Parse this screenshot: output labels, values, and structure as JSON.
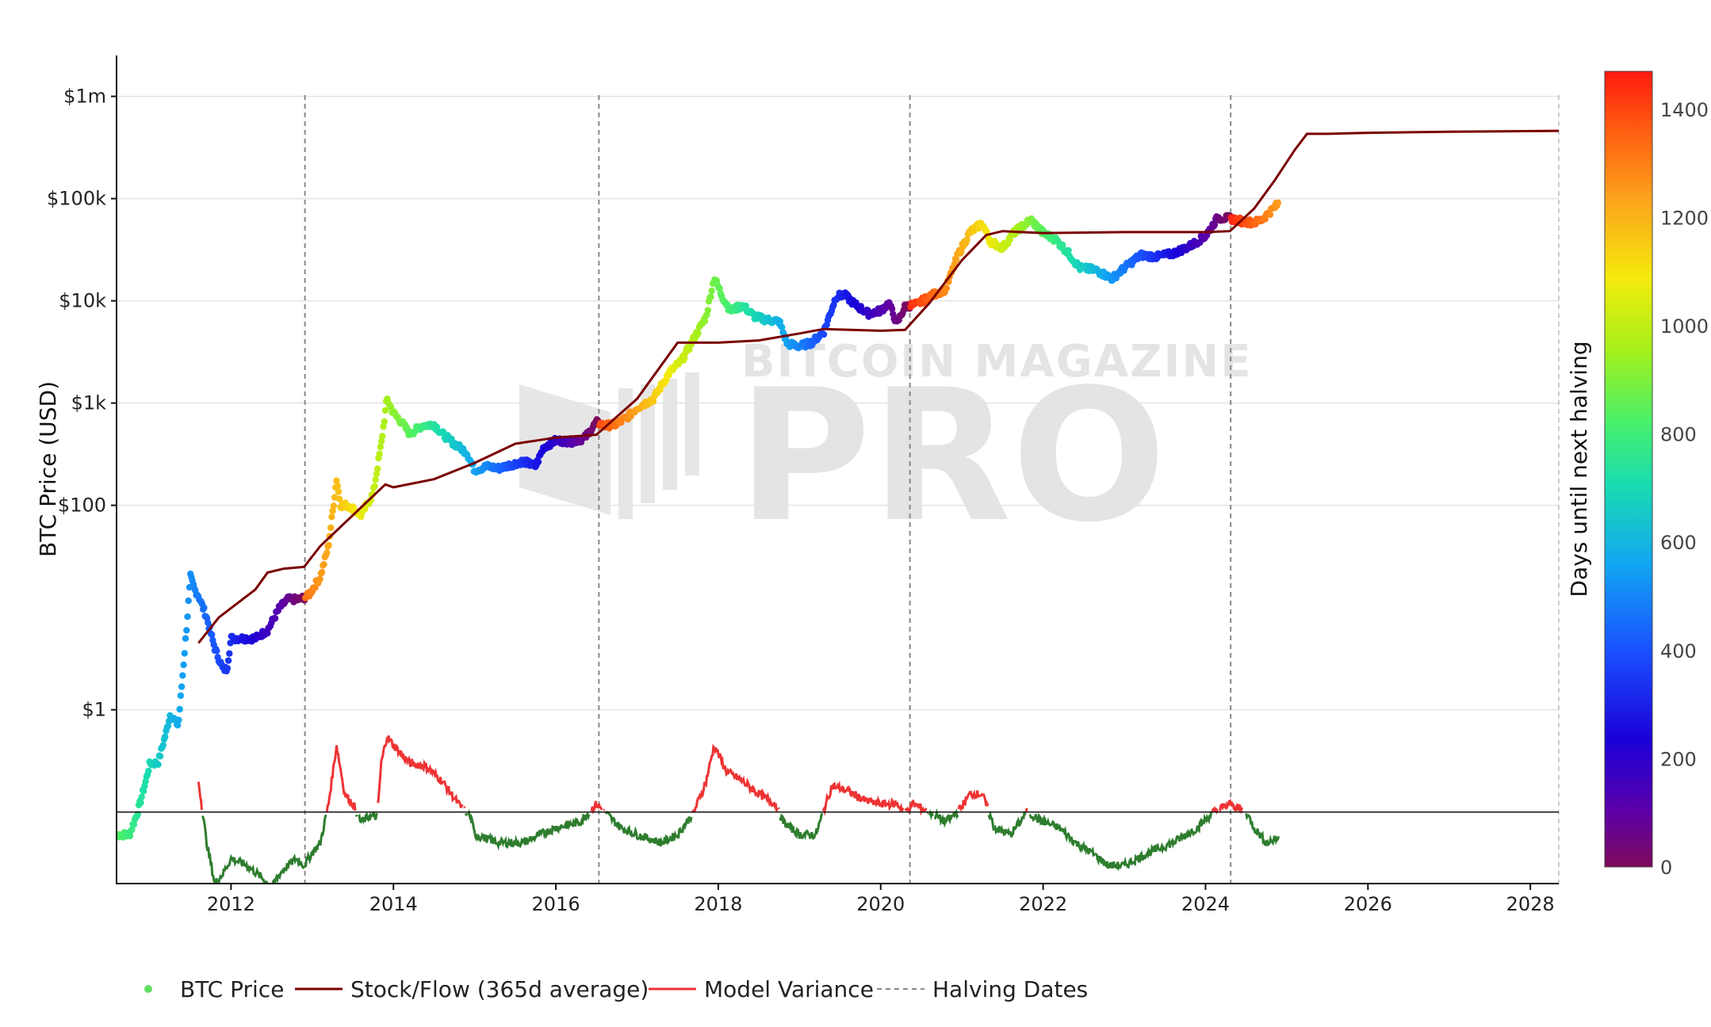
{
  "chart_data": {
    "type": "scatter",
    "ylabel": "BTC Price (USD)",
    "colorbar_label": "Days until next halving",
    "y_scale": "log",
    "x_ticks": [
      "2012",
      "2014",
      "2016",
      "2018",
      "2020",
      "2022",
      "2024",
      "2026",
      "2028"
    ],
    "y_ticks": [
      {
        "value": 1,
        "label": "$1"
      },
      {
        "value": 100,
        "label": "$100"
      },
      {
        "value": 1000,
        "label": "$1k"
      },
      {
        "value": 10000,
        "label": "$10k"
      },
      {
        "value": 100000,
        "label": "$100k"
      },
      {
        "value": 1000000,
        "label": "$1m"
      }
    ],
    "colorbar_ticks": [
      "0",
      "200",
      "400",
      "600",
      "800",
      "1000",
      "1200",
      "1400"
    ],
    "colorbar_range": [
      0,
      1470
    ],
    "x_range": [
      2010.6,
      2028.35
    ],
    "y_range_log10": [
      -1.7,
      6.4
    ],
    "halving_dates": [
      2012.91,
      2016.53,
      2020.36,
      2024.31
    ],
    "legend": [
      {
        "key": "btc",
        "label": "BTC Price",
        "color": "#5ee05e"
      },
      {
        "key": "sf",
        "label": "Stock/Flow (365d average)",
        "color": "#7a0000"
      },
      {
        "key": "mv",
        "label": "Model Variance",
        "color": "#ee3333"
      },
      {
        "key": "hd",
        "label": "Halving Dates",
        "color": "#888888"
      }
    ],
    "btc_price": [
      [
        2010.6,
        0.06
      ],
      [
        2010.75,
        0.06
      ],
      [
        2010.85,
        0.1
      ],
      [
        2010.95,
        0.2
      ],
      [
        2011.0,
        0.3
      ],
      [
        2011.1,
        0.3
      ],
      [
        2011.2,
        0.6
      ],
      [
        2011.25,
        0.9
      ],
      [
        2011.3,
        0.8
      ],
      [
        2011.35,
        0.7
      ],
      [
        2011.4,
        2
      ],
      [
        2011.45,
        6
      ],
      [
        2011.5,
        20
      ],
      [
        2011.55,
        15
      ],
      [
        2011.6,
        13
      ],
      [
        2011.7,
        8
      ],
      [
        2011.8,
        4
      ],
      [
        2011.9,
        2.5
      ],
      [
        2011.95,
        2.5
      ],
      [
        2012.0,
        5
      ],
      [
        2012.15,
        5
      ],
      [
        2012.3,
        5
      ],
      [
        2012.45,
        6
      ],
      [
        2012.6,
        10
      ],
      [
        2012.7,
        12
      ],
      [
        2012.85,
        12
      ],
      [
        2012.95,
        13
      ],
      [
        2013.1,
        20
      ],
      [
        2013.2,
        40
      ],
      [
        2013.3,
        180
      ],
      [
        2013.35,
        100
      ],
      [
        2013.45,
        100
      ],
      [
        2013.6,
        80
      ],
      [
        2013.75,
        130
      ],
      [
        2013.85,
        400
      ],
      [
        2013.92,
        1100
      ],
      [
        2014.0,
        800
      ],
      [
        2014.1,
        650
      ],
      [
        2014.2,
        500
      ],
      [
        2014.35,
        600
      ],
      [
        2014.5,
        620
      ],
      [
        2014.6,
        500
      ],
      [
        2014.75,
        400
      ],
      [
        2014.9,
        330
      ],
      [
        2015.0,
        220
      ],
      [
        2015.15,
        240
      ],
      [
        2015.3,
        230
      ],
      [
        2015.45,
        250
      ],
      [
        2015.6,
        270
      ],
      [
        2015.75,
        240
      ],
      [
        2015.85,
        370
      ],
      [
        2016.0,
        430
      ],
      [
        2016.2,
        420
      ],
      [
        2016.35,
        450
      ],
      [
        2016.5,
        650
      ],
      [
        2016.6,
        600
      ],
      [
        2016.75,
        620
      ],
      [
        2016.9,
        750
      ],
      [
        2017.0,
        900
      ],
      [
        2017.2,
        1100
      ],
      [
        2017.4,
        2000
      ],
      [
        2017.55,
        2600
      ],
      [
        2017.7,
        4300
      ],
      [
        2017.85,
        7000
      ],
      [
        2017.95,
        17000
      ],
      [
        2018.05,
        11000
      ],
      [
        2018.15,
        8000
      ],
      [
        2018.3,
        9000
      ],
      [
        2018.45,
        7000
      ],
      [
        2018.6,
        6500
      ],
      [
        2018.75,
        6300
      ],
      [
        2018.85,
        3800
      ],
      [
        2019.0,
        3600
      ],
      [
        2019.15,
        3900
      ],
      [
        2019.3,
        5000
      ],
      [
        2019.45,
        11000
      ],
      [
        2019.55,
        11500
      ],
      [
        2019.7,
        9000
      ],
      [
        2019.85,
        7500
      ],
      [
        2020.0,
        8000
      ],
      [
        2020.1,
        9500
      ],
      [
        2020.2,
        6000
      ],
      [
        2020.3,
        8800
      ],
      [
        2020.45,
        9300
      ],
      [
        2020.6,
        11000
      ],
      [
        2020.8,
        13000
      ],
      [
        2020.95,
        28000
      ],
      [
        2021.1,
        47000
      ],
      [
        2021.25,
        57000
      ],
      [
        2021.35,
        38000
      ],
      [
        2021.5,
        33000
      ],
      [
        2021.65,
        47000
      ],
      [
        2021.85,
        62000
      ],
      [
        2022.0,
        46000
      ],
      [
        2022.15,
        40000
      ],
      [
        2022.3,
        30000
      ],
      [
        2022.45,
        21000
      ],
      [
        2022.65,
        20000
      ],
      [
        2022.85,
        16500
      ],
      [
        2023.0,
        21000
      ],
      [
        2023.2,
        28000
      ],
      [
        2023.4,
        27000
      ],
      [
        2023.6,
        29000
      ],
      [
        2023.8,
        34000
      ],
      [
        2024.0,
        43000
      ],
      [
        2024.15,
        65000
      ],
      [
        2024.3,
        64000
      ],
      [
        2024.45,
        60000
      ],
      [
        2024.6,
        58000
      ],
      [
        2024.7,
        63000
      ],
      [
        2024.8,
        75000
      ],
      [
        2024.9,
        90000
      ]
    ],
    "stock_to_flow": [
      [
        2011.6,
        4.5
      ],
      [
        2011.85,
        8
      ],
      [
        2012.3,
        15
      ],
      [
        2012.45,
        22
      ],
      [
        2012.65,
        24
      ],
      [
        2012.9,
        25
      ],
      [
        2013.1,
        40
      ],
      [
        2013.9,
        160
      ],
      [
        2014.0,
        150
      ],
      [
        2014.5,
        180
      ],
      [
        2015.0,
        260
      ],
      [
        2015.5,
        400
      ],
      [
        2016.0,
        460
      ],
      [
        2016.5,
        490
      ],
      [
        2017.0,
        1100
      ],
      [
        2017.5,
        3900
      ],
      [
        2018.0,
        3900
      ],
      [
        2018.5,
        4100
      ],
      [
        2019.0,
        4800
      ],
      [
        2019.3,
        5300
      ],
      [
        2020.0,
        5100
      ],
      [
        2020.3,
        5200
      ],
      [
        2020.6,
        9500
      ],
      [
        2021.0,
        25000
      ],
      [
        2021.3,
        44000
      ],
      [
        2021.5,
        48000
      ],
      [
        2022.0,
        46000
      ],
      [
        2023.0,
        47000
      ],
      [
        2024.0,
        47000
      ],
      [
        2024.3,
        48000
      ],
      [
        2024.6,
        80000
      ],
      [
        2024.85,
        150000
      ],
      [
        2025.1,
        300000
      ],
      [
        2025.25,
        430000
      ],
      [
        2025.5,
        430000
      ],
      [
        2026.0,
        440000
      ],
      [
        2027.0,
        450000
      ],
      [
        2028.35,
        460000
      ]
    ],
    "model_variance": [
      [
        2011.6,
        0.2
      ],
      [
        2011.7,
        0.05
      ],
      [
        2011.8,
        0.02
      ],
      [
        2011.9,
        0.025
      ],
      [
        2012.0,
        0.035
      ],
      [
        2012.2,
        0.03
      ],
      [
        2012.4,
        0.022
      ],
      [
        2012.5,
        0.018
      ],
      [
        2012.6,
        0.025
      ],
      [
        2012.7,
        0.03
      ],
      [
        2012.8,
        0.035
      ],
      [
        2012.9,
        0.03
      ],
      [
        2013.0,
        0.04
      ],
      [
        2013.1,
        0.05
      ],
      [
        2013.2,
        0.12
      ],
      [
        2013.3,
        0.45
      ],
      [
        2013.4,
        0.15
      ],
      [
        2013.5,
        0.12
      ],
      [
        2013.6,
        0.08
      ],
      [
        2013.7,
        0.09
      ],
      [
        2013.8,
        0.09
      ],
      [
        2013.85,
        0.3
      ],
      [
        2013.92,
        0.55
      ],
      [
        2014.0,
        0.45
      ],
      [
        2014.2,
        0.3
      ],
      [
        2014.4,
        0.28
      ],
      [
        2014.6,
        0.2
      ],
      [
        2014.8,
        0.12
      ],
      [
        2014.95,
        0.09
      ],
      [
        2015.0,
        0.06
      ],
      [
        2015.3,
        0.05
      ],
      [
        2015.6,
        0.05
      ],
      [
        2015.8,
        0.06
      ],
      [
        2016.0,
        0.07
      ],
      [
        2016.3,
        0.08
      ],
      [
        2016.5,
        0.12
      ],
      [
        2016.6,
        0.1
      ],
      [
        2016.8,
        0.07
      ],
      [
        2017.0,
        0.06
      ],
      [
        2017.3,
        0.05
      ],
      [
        2017.5,
        0.06
      ],
      [
        2017.7,
        0.1
      ],
      [
        2017.85,
        0.2
      ],
      [
        2017.95,
        0.45
      ],
      [
        2018.1,
        0.25
      ],
      [
        2018.3,
        0.2
      ],
      [
        2018.5,
        0.15
      ],
      [
        2018.7,
        0.12
      ],
      [
        2018.8,
        0.08
      ],
      [
        2019.0,
        0.06
      ],
      [
        2019.2,
        0.06
      ],
      [
        2019.4,
        0.18
      ],
      [
        2019.6,
        0.16
      ],
      [
        2019.8,
        0.13
      ],
      [
        2020.0,
        0.12
      ],
      [
        2020.2,
        0.12
      ],
      [
        2020.3,
        0.1
      ],
      [
        2020.4,
        0.12
      ],
      [
        2020.6,
        0.1
      ],
      [
        2020.8,
        0.08
      ],
      [
        2020.95,
        0.1
      ],
      [
        2021.1,
        0.15
      ],
      [
        2021.25,
        0.15
      ],
      [
        2021.4,
        0.07
      ],
      [
        2021.6,
        0.06
      ],
      [
        2021.8,
        0.1
      ],
      [
        2022.0,
        0.08
      ],
      [
        2022.2,
        0.07
      ],
      [
        2022.4,
        0.05
      ],
      [
        2022.6,
        0.04
      ],
      [
        2022.8,
        0.03
      ],
      [
        2023.0,
        0.03
      ],
      [
        2023.3,
        0.04
      ],
      [
        2023.6,
        0.05
      ],
      [
        2023.9,
        0.07
      ],
      [
        2024.1,
        0.1
      ],
      [
        2024.3,
        0.12
      ],
      [
        2024.5,
        0.1
      ],
      [
        2024.6,
        0.07
      ],
      [
        2024.75,
        0.05
      ],
      [
        2024.9,
        0.055
      ]
    ]
  }
}
